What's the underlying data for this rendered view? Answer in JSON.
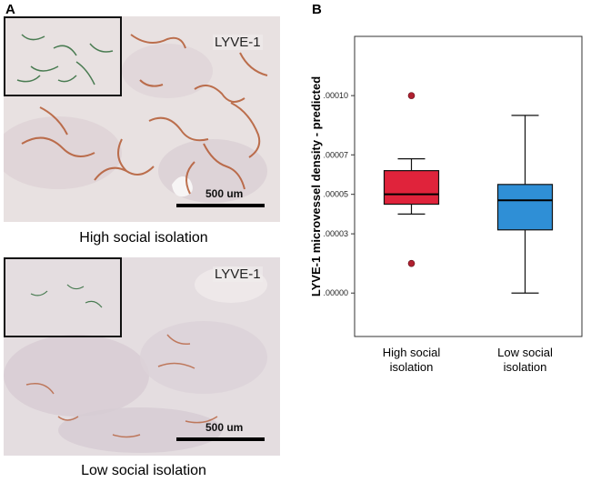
{
  "panel_a": {
    "letter": "A",
    "images": [
      {
        "stain_label": "LYVE-1",
        "scale_label": "500 um",
        "caption": "High social isolation"
      },
      {
        "stain_label": "LYVE-1",
        "scale_label": "500 um",
        "caption": "Low social isolation"
      }
    ]
  },
  "panel_b": {
    "letter": "B"
  },
  "colors": {
    "high_box": "#e0233b",
    "low_box": "#2f8fd6",
    "outlier": "#b02030",
    "tissue_bg": "#e6dfdf",
    "vessel_brown": "#b45a33",
    "vessel_green": "#2f6b3a"
  },
  "chart_data": {
    "type": "box",
    "ylabel": "LYVE-1 microvessel density - predicted",
    "categories": [
      "High social isolation",
      "Low social isolation"
    ],
    "category_label_lines": [
      [
        "High social",
        "isolation"
      ],
      [
        "Low social",
        "isolation"
      ]
    ],
    "yticks": [
      {
        "value": 0.0,
        "label": ".00000"
      },
      {
        "value": 3e-05,
        "label": ".00003"
      },
      {
        "value": 5e-05,
        "label": ".00005"
      },
      {
        "value": 7e-05,
        "label": ".00007"
      },
      {
        "value": 0.0001,
        "label": ".00010"
      }
    ],
    "ylim": [
      -2.2e-05,
      0.00013
    ],
    "boxes": [
      {
        "min": 4e-05,
        "q1": 4.5e-05,
        "median": 5e-05,
        "q3": 6.2e-05,
        "max": 6.8e-05,
        "outliers": [
          0.0001,
          1.5e-05
        ]
      },
      {
        "min": 0.0,
        "q1": 3.2e-05,
        "median": 4.7e-05,
        "q3": 5.5e-05,
        "max": 9e-05,
        "outliers": []
      }
    ]
  }
}
